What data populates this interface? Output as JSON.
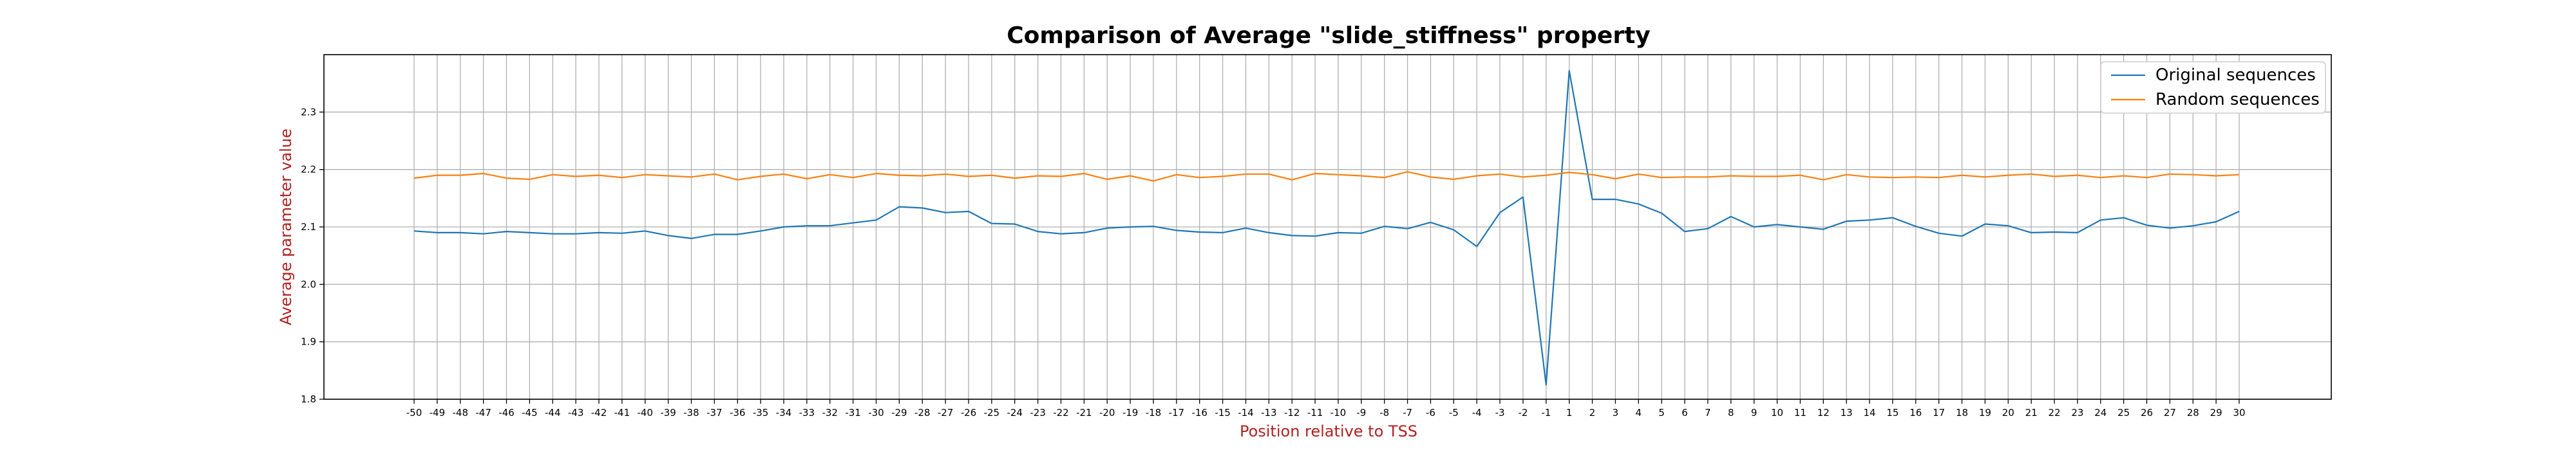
{
  "chart_data": {
    "type": "line",
    "title": "Comparison of Average \"slide_stiffness\" property",
    "xlabel": "Position relative to TSS",
    "ylabel": "Average parameter value",
    "x": [
      -50,
      -49,
      -48,
      -47,
      -46,
      -45,
      -44,
      -43,
      -42,
      -41,
      -40,
      -39,
      -38,
      -37,
      -36,
      -35,
      -34,
      -33,
      -32,
      -31,
      -30,
      -29,
      -28,
      -27,
      -26,
      -25,
      -24,
      -23,
      -22,
      -21,
      -20,
      -19,
      -18,
      -17,
      -16,
      -15,
      -14,
      -13,
      -12,
      -11,
      -10,
      -9,
      -8,
      -7,
      -6,
      -5,
      -4,
      -3,
      -2,
      -1,
      1,
      2,
      3,
      4,
      5,
      6,
      7,
      8,
      9,
      10,
      11,
      12,
      13,
      14,
      15,
      16,
      17,
      18,
      19,
      20,
      21,
      22,
      23,
      24,
      25,
      26,
      27,
      28,
      29,
      30
    ],
    "x_tick_labels": [
      "-50",
      "-49",
      "-48",
      "-47",
      "-46",
      "-45",
      "-44",
      "-43",
      "-42",
      "-41",
      "-40",
      "-39",
      "-38",
      "-37",
      "-36",
      "-35",
      "-34",
      "-33",
      "-32",
      "-31",
      "-30",
      "-29",
      "-28",
      "-27",
      "-26",
      "-25",
      "-24",
      "-23",
      "-22",
      "-21",
      "-20",
      "-19",
      "-18",
      "-17",
      "-16",
      "-15",
      "-14",
      "-13",
      "-12",
      "-11",
      "-10",
      "-9",
      "-8",
      "-7",
      "-6",
      "-5",
      "-4",
      "-3",
      "-2",
      "-1",
      "1",
      "2",
      "3",
      "4",
      "5",
      "6",
      "7",
      "8",
      "9",
      "10",
      "11",
      "12",
      "13",
      "14",
      "15",
      "16",
      "17",
      "18",
      "19",
      "20",
      "21",
      "22",
      "23",
      "24",
      "25",
      "26",
      "27",
      "28",
      "29",
      "30"
    ],
    "y_ticks": [
      1.8,
      1.9,
      2.0,
      2.1,
      2.2,
      2.3
    ],
    "y_tick_labels": [
      "1.8",
      "1.9",
      "2.0",
      "2.1",
      "2.2",
      "2.3"
    ],
    "ylim": [
      1.8,
      2.4
    ],
    "grid": true,
    "legend_position": "top-right",
    "series": [
      {
        "name": "Original sequences",
        "color": "#1f77b4",
        "values": [
          2.093,
          2.09,
          2.09,
          2.088,
          2.092,
          2.09,
          2.088,
          2.088,
          2.09,
          2.089,
          2.093,
          2.085,
          2.08,
          2.087,
          2.087,
          2.093,
          2.1,
          2.102,
          2.102,
          2.107,
          2.112,
          2.135,
          2.133,
          2.125,
          2.127,
          2.106,
          2.105,
          2.092,
          2.088,
          2.09,
          2.098,
          2.1,
          2.101,
          2.094,
          2.091,
          2.09,
          2.098,
          2.09,
          2.085,
          2.084,
          2.09,
          2.089,
          2.101,
          2.097,
          2.108,
          2.095,
          2.066,
          2.125,
          2.152,
          1.825,
          2.372,
          2.148,
          2.148,
          2.14,
          2.124,
          2.092,
          2.097,
          2.118,
          2.1,
          2.104,
          2.1,
          2.096,
          2.11,
          2.112,
          2.116,
          2.101,
          2.089,
          2.084,
          2.105,
          2.102,
          2.09,
          2.091,
          2.09,
          2.112,
          2.116,
          2.103,
          2.098,
          2.102,
          2.109,
          2.127
        ]
      },
      {
        "name": "Random sequences",
        "color": "#ff7f0e",
        "values": [
          2.185,
          2.19,
          2.19,
          2.193,
          2.185,
          2.183,
          2.191,
          2.188,
          2.19,
          2.186,
          2.191,
          2.189,
          2.187,
          2.192,
          2.182,
          2.188,
          2.192,
          2.184,
          2.191,
          2.186,
          2.193,
          2.19,
          2.189,
          2.192,
          2.188,
          2.19,
          2.185,
          2.189,
          2.188,
          2.193,
          2.183,
          2.189,
          2.18,
          2.191,
          2.186,
          2.188,
          2.192,
          2.192,
          2.182,
          2.193,
          2.191,
          2.189,
          2.186,
          2.196,
          2.187,
          2.183,
          2.189,
          2.192,
          2.187,
          2.19,
          2.195,
          2.191,
          2.184,
          2.192,
          2.186,
          2.187,
          2.187,
          2.189,
          2.188,
          2.188,
          2.19,
          2.182,
          2.191,
          2.187,
          2.186,
          2.187,
          2.186,
          2.19,
          2.187,
          2.19,
          2.192,
          2.188,
          2.19,
          2.186,
          2.189,
          2.186,
          2.192,
          2.191,
          2.189,
          2.191
        ]
      }
    ]
  }
}
